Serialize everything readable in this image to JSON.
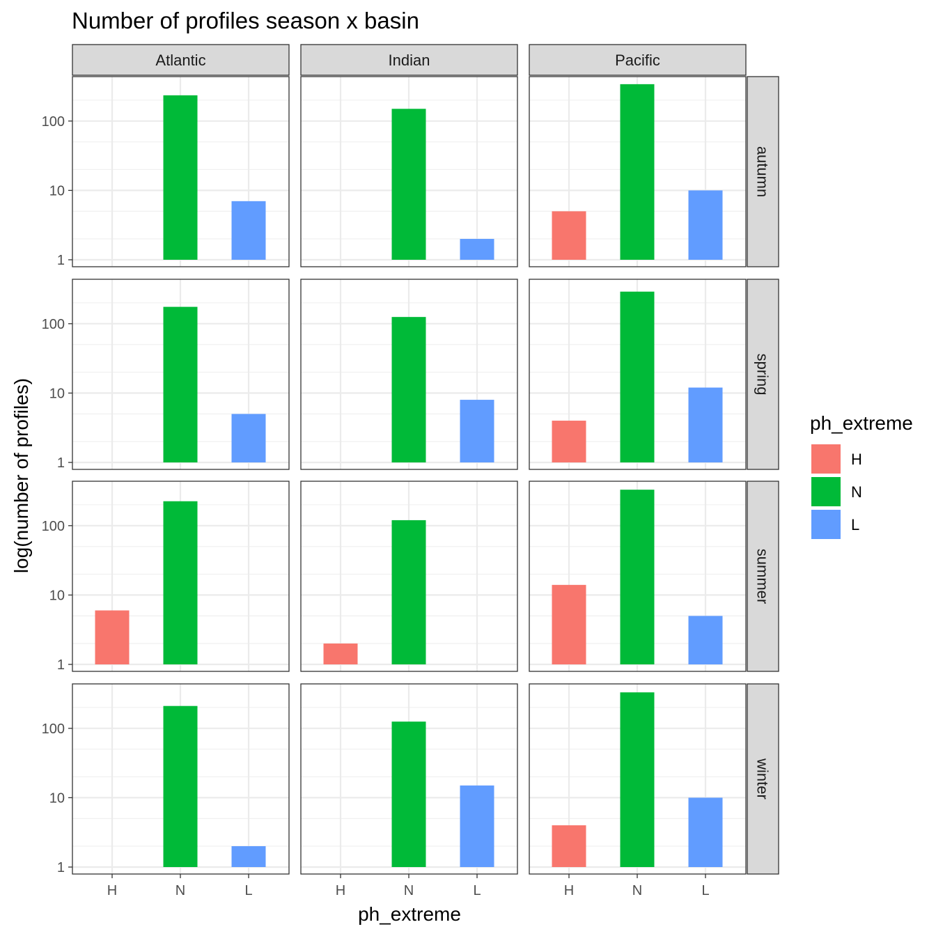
{
  "chart_data": {
    "type": "bar",
    "title": "Number of profiles season x basin",
    "xlabel": "ph_extreme",
    "ylabel": "log(number of profiles)",
    "y_scale": "log10",
    "y_ticks": [
      1,
      10,
      100
    ],
    "y_tick_labels": [
      "1",
      "10",
      "100"
    ],
    "categories": [
      "H",
      "N",
      "L"
    ],
    "column_facets": [
      "Atlantic",
      "Indian",
      "Pacific"
    ],
    "row_facets": [
      "autumn",
      "spring",
      "summer",
      "winter"
    ],
    "grid": true,
    "legend": {
      "title": "ph_extreme",
      "placement": "right",
      "entries": [
        {
          "label": "H",
          "color": "#F8766D"
        },
        {
          "label": "N",
          "color": "#00BA38"
        },
        {
          "label": "L",
          "color": "#619CFF"
        }
      ]
    },
    "panels": [
      {
        "column": "Atlantic",
        "row": "autumn",
        "values": {
          "N": 235,
          "L": 7
        }
      },
      {
        "column": "Indian",
        "row": "autumn",
        "values": {
          "N": 150,
          "L": 2
        }
      },
      {
        "column": "Pacific",
        "row": "autumn",
        "values": {
          "H": 5,
          "N": 340,
          "L": 10
        }
      },
      {
        "column": "Atlantic",
        "row": "spring",
        "values": {
          "N": 175,
          "L": 5
        }
      },
      {
        "column": "Indian",
        "row": "spring",
        "values": {
          "N": 125,
          "L": 8
        }
      },
      {
        "column": "Pacific",
        "row": "spring",
        "values": {
          "H": 4,
          "N": 290,
          "L": 12
        }
      },
      {
        "column": "Atlantic",
        "row": "summer",
        "values": {
          "H": 6,
          "N": 225
        }
      },
      {
        "column": "Indian",
        "row": "summer",
        "values": {
          "H": 2,
          "N": 120
        }
      },
      {
        "column": "Pacific",
        "row": "summer",
        "values": {
          "H": 14,
          "N": 330,
          "L": 5
        }
      },
      {
        "column": "Atlantic",
        "row": "winter",
        "values": {
          "N": 210,
          "L": 2
        }
      },
      {
        "column": "Indian",
        "row": "winter",
        "values": {
          "N": 125,
          "L": 15
        }
      },
      {
        "column": "Pacific",
        "row": "winter",
        "values": {
          "H": 4,
          "N": 330,
          "L": 10
        }
      }
    ]
  }
}
